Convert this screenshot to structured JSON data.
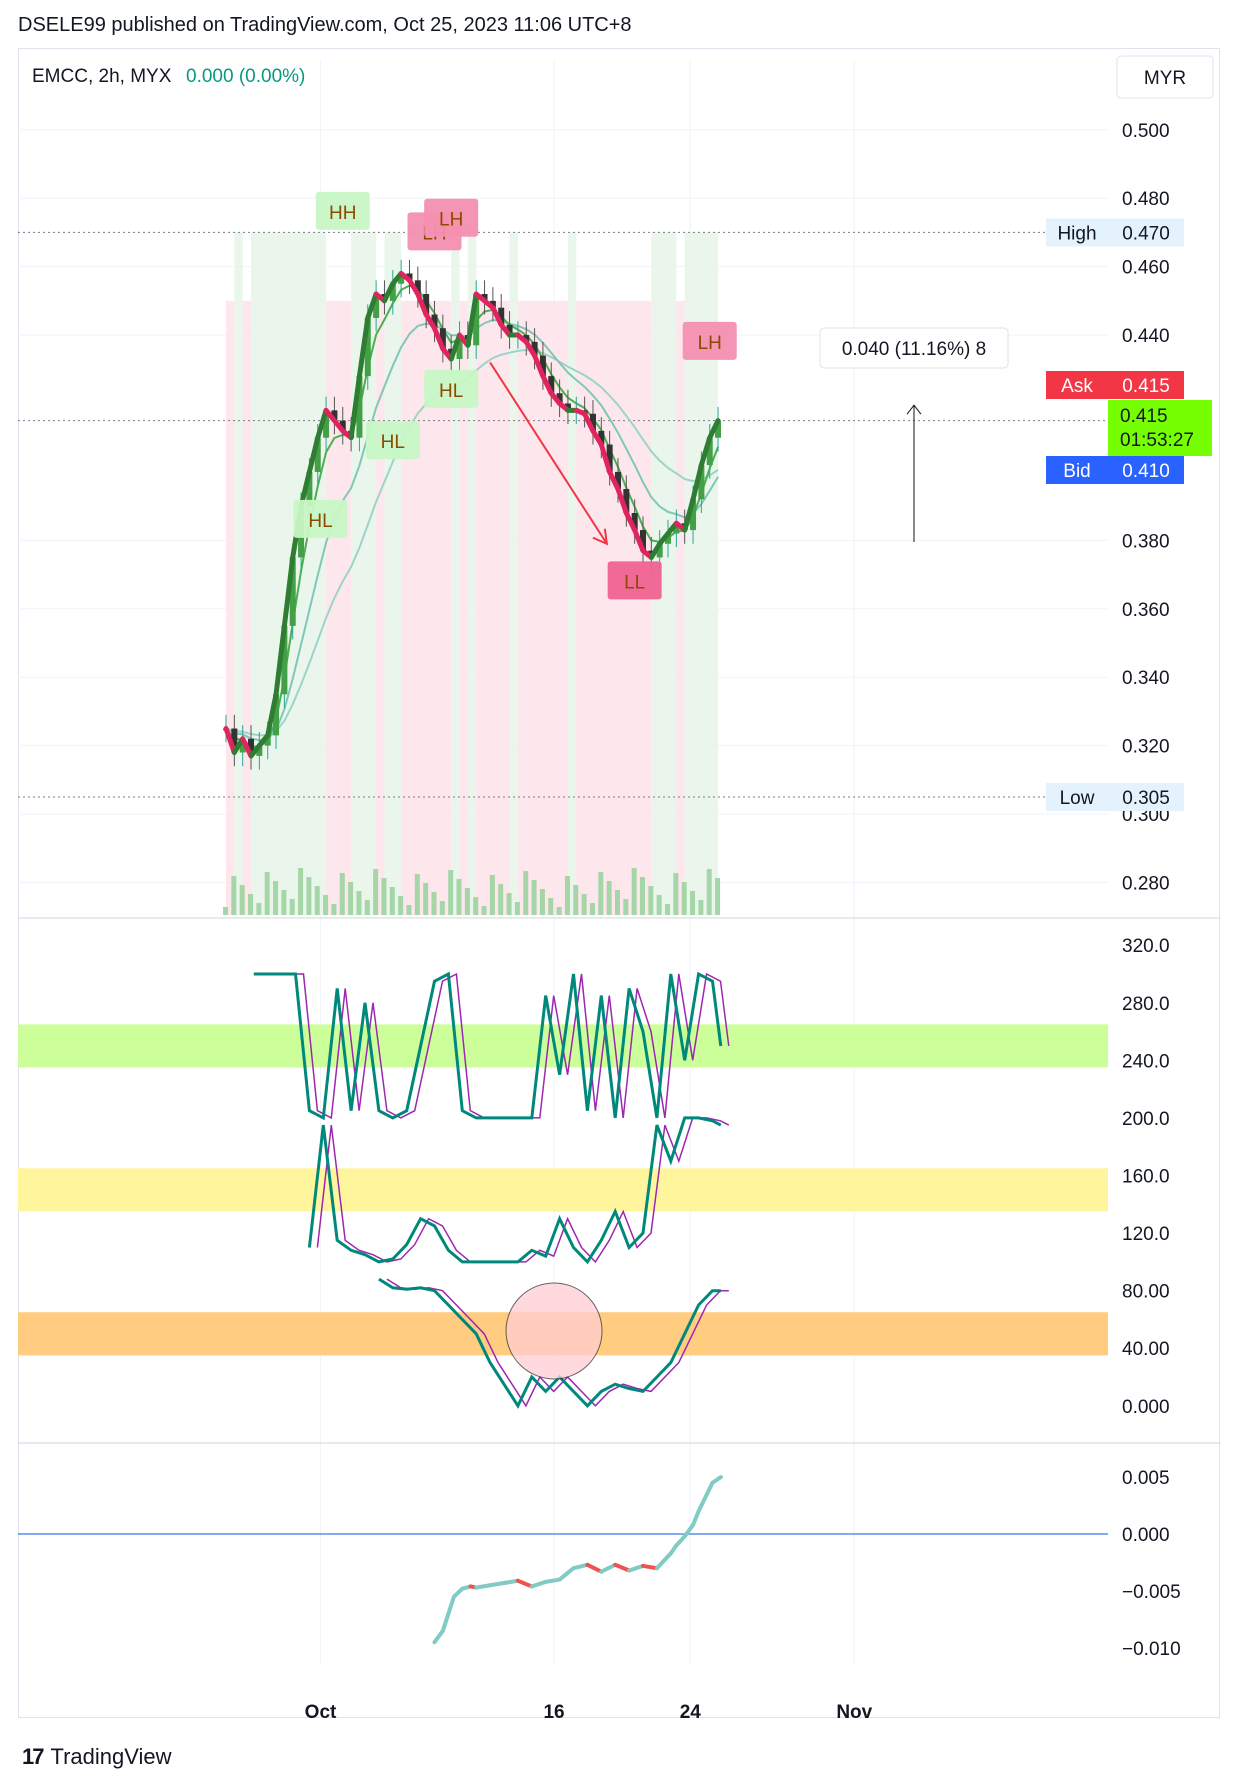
{
  "header": {
    "published_line": "DSELE99 published on TradingView.com, Oct 25, 2023 11:06 UTC+8"
  },
  "legend": {
    "symbol": "EMCC, 2h, MYX",
    "change": "0.000 (0.00%)",
    "currency": "MYR"
  },
  "badges": {
    "high_label": "High",
    "high_value": "0.470",
    "low_label": "Low",
    "low_value": "0.305",
    "ask_label": "Ask",
    "ask_value": "0.415",
    "bid_label": "Bid",
    "bid_value": "0.410",
    "last_value": "0.415",
    "countdown": "01:53:27",
    "measure_label": "0.040 (11.16%) 8"
  },
  "footer": {
    "brand": "TradingView",
    "logo_glyph": "17"
  },
  "colors": {
    "up": "#26a69a",
    "down": "#e0245e",
    "ema_fast": "#4caf50",
    "ask": "#f23645",
    "bid": "#2962ff",
    "last": "#76ff03"
  },
  "chart_data": [
    {
      "type": "candlestick",
      "title": "",
      "price_ticks": [
        0.5,
        0.48,
        0.46,
        0.44,
        0.38,
        0.36,
        0.34,
        0.32,
        0.3,
        0.28
      ],
      "price_tick_labels": [
        "0.500",
        "0.480",
        "0.460",
        "0.440",
        "0.380",
        "0.360",
        "0.340",
        "0.320",
        "0.300",
        "0.280"
      ],
      "ylim": [
        0.2705,
        0.5087
      ],
      "x_ticks": [
        {
          "label": "Oct",
          "index": 34
        },
        {
          "label": "16",
          "index": 118
        },
        {
          "label": "24",
          "index": 167
        },
        {
          "label": "Nov",
          "index": 226
        }
      ],
      "bars_total_span": 250,
      "close_path": [
        [
          0,
          0.325
        ],
        [
          3,
          0.318
        ],
        [
          6,
          0.322
        ],
        [
          9,
          0.317
        ],
        [
          12,
          0.32
        ],
        [
          15,
          0.323
        ],
        [
          18,
          0.335
        ],
        [
          21,
          0.355
        ],
        [
          24,
          0.375
        ],
        [
          27,
          0.39
        ],
        [
          30,
          0.4
        ],
        [
          33,
          0.41
        ],
        [
          36,
          0.418
        ],
        [
          39,
          0.415
        ],
        [
          42,
          0.412
        ],
        [
          45,
          0.41
        ],
        [
          48,
          0.428
        ],
        [
          51,
          0.445
        ],
        [
          54,
          0.452
        ],
        [
          57,
          0.45
        ],
        [
          60,
          0.455
        ],
        [
          63,
          0.458
        ],
        [
          66,
          0.456
        ],
        [
          69,
          0.452
        ],
        [
          72,
          0.446
        ],
        [
          75,
          0.442
        ],
        [
          78,
          0.436
        ],
        [
          81,
          0.433
        ],
        [
          84,
          0.44
        ],
        [
          87,
          0.437
        ],
        [
          90,
          0.452
        ],
        [
          93,
          0.45
        ],
        [
          96,
          0.448
        ],
        [
          99,
          0.443
        ],
        [
          102,
          0.44
        ],
        [
          105,
          0.44
        ],
        [
          108,
          0.438
        ],
        [
          111,
          0.434
        ],
        [
          114,
          0.428
        ],
        [
          117,
          0.423
        ],
        [
          120,
          0.42
        ],
        [
          123,
          0.418
        ],
        [
          126,
          0.418
        ],
        [
          129,
          0.417
        ],
        [
          132,
          0.412
        ],
        [
          135,
          0.408
        ],
        [
          138,
          0.4
        ],
        [
          141,
          0.395
        ],
        [
          144,
          0.388
        ],
        [
          147,
          0.383
        ],
        [
          150,
          0.377
        ],
        [
          153,
          0.375
        ],
        [
          156,
          0.379
        ],
        [
          159,
          0.382
        ],
        [
          162,
          0.385
        ],
        [
          165,
          0.383
        ],
        [
          168,
          0.392
        ],
        [
          171,
          0.402
        ],
        [
          174,
          0.41
        ],
        [
          177,
          0.415
        ]
      ],
      "labels": [
        {
          "text": "HH",
          "index": 42,
          "price": 0.476,
          "kind": "high"
        },
        {
          "text": "LH",
          "index": 75,
          "price": 0.47,
          "kind": "lowered"
        },
        {
          "text": "LH",
          "index": 81,
          "price": 0.474,
          "kind": "lowered"
        },
        {
          "text": "HL",
          "index": 34,
          "price": 0.386,
          "kind": "higher-low"
        },
        {
          "text": "HL",
          "index": 60,
          "price": 0.409,
          "kind": "higher-low"
        },
        {
          "text": "HL",
          "index": 81,
          "price": 0.424,
          "kind": "higher-low"
        },
        {
          "text": "LL",
          "index": 147,
          "price": 0.368,
          "kind": "lower-low"
        },
        {
          "text": "LH",
          "index": 174,
          "price": 0.438,
          "kind": "lowered"
        }
      ],
      "volume_note": "volume bars with moving average shown at bottom of price pane"
    },
    {
      "type": "line",
      "title": "",
      "ticks": [
        320,
        280,
        240,
        200,
        160,
        120,
        80,
        40,
        0
      ],
      "tick_labels": [
        "320.0",
        "280.0",
        "240.0",
        "200.0",
        "160.0",
        "120.0",
        "80.00",
        "40.00",
        "0.000"
      ],
      "ylim": [
        -5,
        325
      ],
      "bands": [
        {
          "from": 235,
          "to": 265,
          "color": "#ccff99"
        },
        {
          "from": 135,
          "to": 165,
          "color": "#fff59d"
        },
        {
          "from": 35,
          "to": 65,
          "color": "#ffcc80"
        }
      ],
      "series": [
        {
          "values_x": [
            10,
            20,
            25,
            30,
            35,
            40,
            45,
            50,
            55,
            60,
            65,
            70,
            75,
            80,
            85,
            90,
            95,
            100,
            105,
            110,
            115,
            120,
            125,
            130,
            135,
            140,
            145,
            150,
            155,
            160,
            165,
            170,
            175,
            178
          ],
          "values": [
            300,
            300,
            300,
            205,
            200,
            290,
            205,
            280,
            205,
            200,
            205,
            250,
            295,
            300,
            205,
            200,
            200,
            200,
            200,
            200,
            285,
            230,
            300,
            205,
            285,
            200,
            290,
            260,
            200,
            300,
            240,
            300,
            295,
            250
          ]
        },
        {
          "values_x": [
            30,
            35,
            40,
            45,
            50,
            55,
            60,
            65,
            70,
            75,
            80,
            85,
            90,
            95,
            100,
            105,
            110,
            115,
            120,
            125,
            130,
            135,
            140,
            145,
            150,
            155,
            160,
            165,
            170,
            175,
            178
          ],
          "values": [
            110,
            195,
            115,
            108,
            105,
            100,
            102,
            112,
            130,
            125,
            108,
            100,
            100,
            100,
            100,
            100,
            108,
            104,
            130,
            110,
            100,
            115,
            135,
            110,
            120,
            195,
            170,
            200,
            200,
            198,
            195
          ]
        },
        {
          "values_x": [
            55,
            60,
            65,
            70,
            75,
            80,
            85,
            90,
            95,
            100,
            105,
            110,
            115,
            120,
            125,
            130,
            135,
            140,
            145,
            150,
            155,
            160,
            165,
            170,
            175,
            178
          ],
          "values": [
            88,
            82,
            81,
            82,
            80,
            70,
            60,
            50,
            30,
            15,
            0,
            20,
            10,
            20,
            10,
            0,
            10,
            15,
            12,
            10,
            20,
            30,
            50,
            70,
            80,
            80
          ]
        }
      ]
    },
    {
      "type": "line",
      "title": "",
      "ticks": [
        0.005,
        0.0,
        -0.005,
        -0.01
      ],
      "tick_labels": [
        "0.005",
        "0.000",
        "−0.005",
        "−0.010"
      ],
      "ylim": [
        -0.0115,
        0.0065
      ],
      "series": [
        {
          "values_x": [
            75,
            78,
            80,
            82,
            85,
            88,
            90,
            95,
            100,
            105,
            110,
            115,
            120,
            125,
            130,
            135,
            140,
            145,
            150,
            155,
            160,
            162,
            165,
            168,
            170,
            173,
            175,
            178
          ],
          "values": [
            -0.0095,
            -0.0085,
            -0.007,
            -0.0055,
            -0.0048,
            -0.0046,
            -0.0047,
            -0.0045,
            -0.0043,
            -0.0041,
            -0.0046,
            -0.0042,
            -0.004,
            -0.003,
            -0.0027,
            -0.0033,
            -0.0027,
            -0.0032,
            -0.0028,
            -0.003,
            -0.0017,
            -0.001,
            -0.0002,
            0.0008,
            0.002,
            0.0035,
            0.0045,
            0.005
          ]
        }
      ]
    }
  ]
}
